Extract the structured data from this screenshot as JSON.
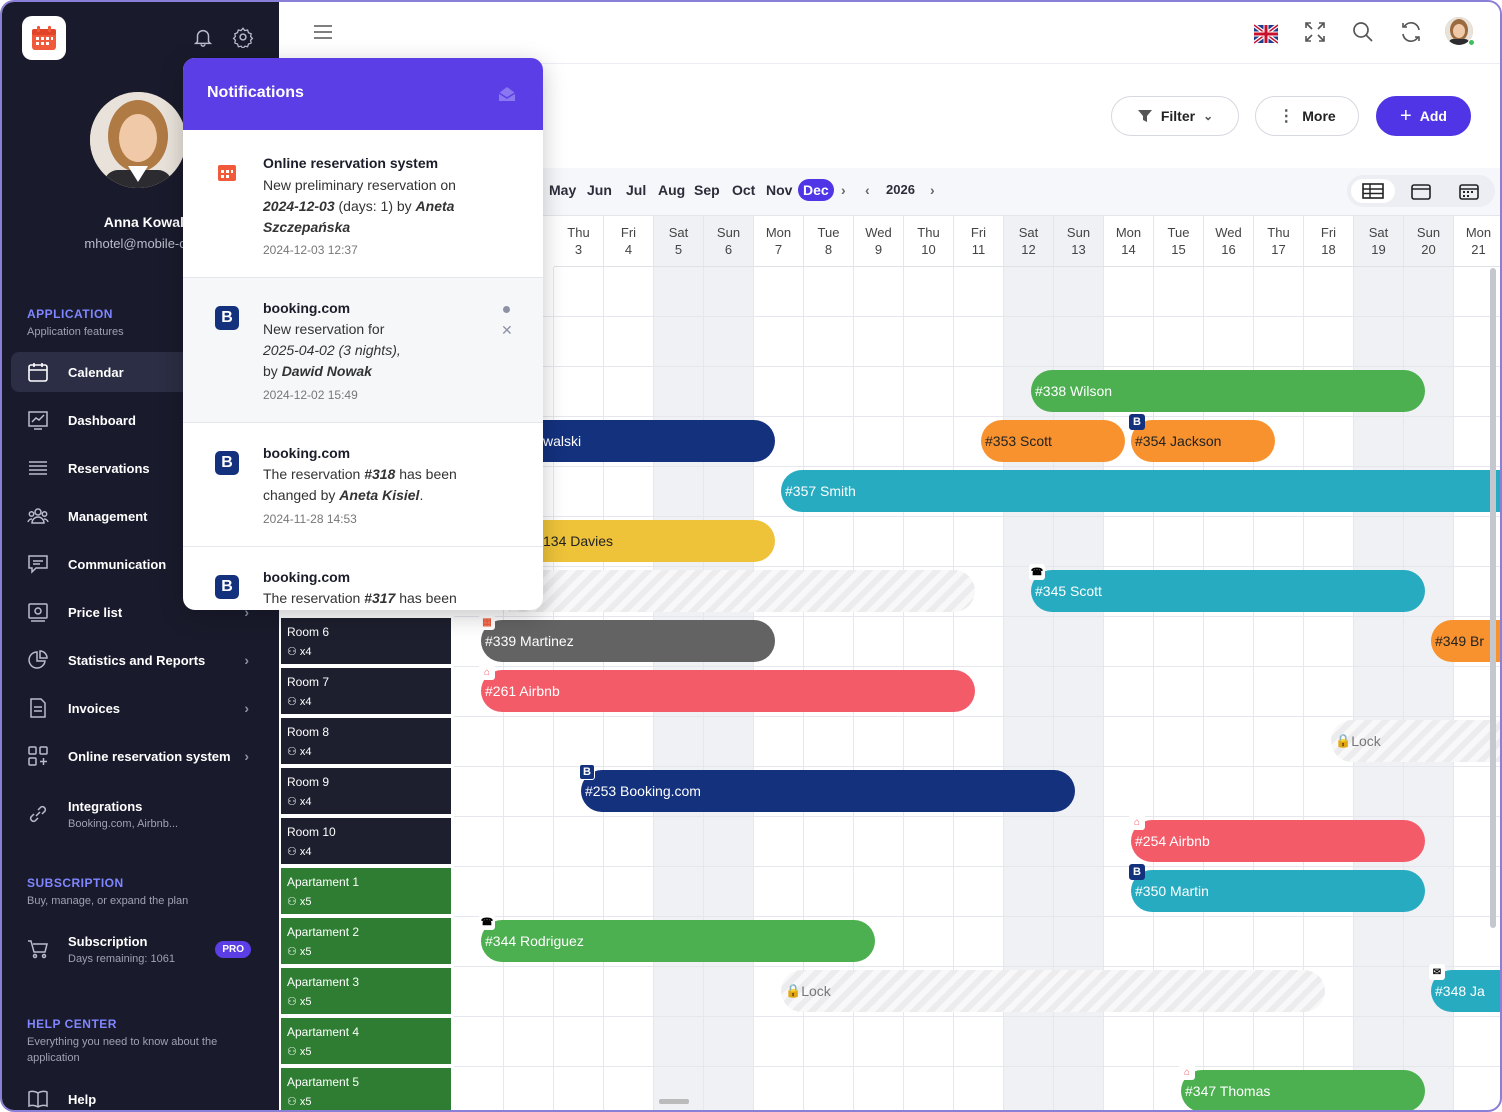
{
  "user": {
    "name": "Anna Kowalska",
    "email": "mhotel@mobile-calendar.com"
  },
  "sections": {
    "application": {
      "title": "APPLICATION",
      "sub": "Application features"
    },
    "subscription": {
      "title": "SUBSCRIPTION",
      "sub": "Buy, manage, or expand the plan"
    },
    "help": {
      "title": "HELP CENTER",
      "sub": "Everything you need to know about the application"
    }
  },
  "nav": [
    {
      "label": "Calendar",
      "icon": "calendar-icon"
    },
    {
      "label": "Dashboard",
      "icon": "chart-icon"
    },
    {
      "label": "Reservations",
      "icon": "list-icon"
    },
    {
      "label": "Management",
      "icon": "people-icon"
    },
    {
      "label": "Communication",
      "icon": "chat-icon"
    },
    {
      "label": "Price list",
      "icon": "price-icon"
    },
    {
      "label": "Statistics and Reports",
      "icon": "pie-icon"
    },
    {
      "label": "Invoices",
      "icon": "document-icon"
    },
    {
      "label": "Online reservation system",
      "icon": "grid-plus-icon"
    },
    {
      "label": "Integrations",
      "sub": "Booking.com, Airbnb...",
      "icon": "link-icon"
    }
  ],
  "subscription": {
    "label": "Subscription",
    "sub": "Days remaining: 1061",
    "badge": "PRO"
  },
  "help": {
    "label": "Help"
  },
  "toolbar": {
    "filter": "Filter",
    "more": "More",
    "add": "Add"
  },
  "months": [
    "May",
    "Jun",
    "Jul",
    "Aug",
    "Sep",
    "Oct",
    "Nov",
    "Dec"
  ],
  "selected_month": "Dec",
  "year": "2026",
  "days": [
    {
      "d": "Thu",
      "n": "3"
    },
    {
      "d": "Fri",
      "n": "4"
    },
    {
      "d": "Sat",
      "n": "5"
    },
    {
      "d": "Sun",
      "n": "6"
    },
    {
      "d": "Mon",
      "n": "7"
    },
    {
      "d": "Tue",
      "n": "8"
    },
    {
      "d": "Wed",
      "n": "9"
    },
    {
      "d": "Thu",
      "n": "10"
    },
    {
      "d": "Fri",
      "n": "11"
    },
    {
      "d": "Sat",
      "n": "12"
    },
    {
      "d": "Sun",
      "n": "13"
    },
    {
      "d": "Mon",
      "n": "14"
    },
    {
      "d": "Tue",
      "n": "15"
    },
    {
      "d": "Wed",
      "n": "16"
    },
    {
      "d": "Thu",
      "n": "17"
    },
    {
      "d": "Fri",
      "n": "18"
    },
    {
      "d": "Sat",
      "n": "19"
    },
    {
      "d": "Sun",
      "n": "20"
    },
    {
      "d": "Mon",
      "n": "21"
    }
  ],
  "rooms": [
    {
      "name": "Room 6",
      "cap": "x4"
    },
    {
      "name": "Room 7",
      "cap": "x4"
    },
    {
      "name": "Room 8",
      "cap": "x4"
    },
    {
      "name": "Room 9",
      "cap": "x4"
    },
    {
      "name": "Room 10",
      "cap": "x4"
    },
    {
      "name": "Apartament 1",
      "cap": "x5"
    },
    {
      "name": "Apartament 2",
      "cap": "x5"
    },
    {
      "name": "Apartament 3",
      "cap": "x5"
    },
    {
      "name": "Apartament 4",
      "cap": "x5"
    },
    {
      "name": "Apartament 5",
      "cap": "x5"
    }
  ],
  "bookings": {
    "b338": "#338 Wilson",
    "b_kowalski": "walski",
    "b353": "#353 Scott",
    "b354": "#354 Jackson",
    "b357": "#357 Smith",
    "b134": "134 Davies",
    "b345": "#345 Scott",
    "b339": "#339 Martinez",
    "b349": "#349 Br",
    "b261": "#261 Airbnb",
    "lock1": "Lock",
    "b253": "#253 Booking.com",
    "b254": "#254 Airbnb",
    "b350": "#350 Martin",
    "b344": "#344 Rodriguez",
    "lock2": "Lock",
    "b348": "#348 Ja",
    "b347": "#347 Thomas"
  },
  "colors": {
    "green": "#4caf50",
    "navy": "#14317e",
    "orange": "#f7922e",
    "teal": "#26abc0",
    "yellow": "#eec33a",
    "gray": "#636363",
    "red": "#f45b69",
    "accent": "#4f35e6"
  },
  "notifications": {
    "title": "Notifications",
    "items": [
      {
        "source": "Online reservation system",
        "l1": "New preliminary reservation on",
        "date_b": "2024-12-03",
        "l2": " (days: 1) by ",
        "name_b": "Aneta Szczepańska",
        "time": "2024-12-03 12:37"
      },
      {
        "source": "booking.com",
        "l1": "New reservation for",
        "it": "2025-04-02 (3 nights),",
        "l2": "by ",
        "name_b": "Dawid Nowak",
        "time": "2024-12-02 15:49"
      },
      {
        "source": "booking.com",
        "l1": "The reservation ",
        "res_b": "#318",
        "l1b": " has been",
        "l2": "changed by ",
        "name_b": "Aneta Kisiel",
        "time": "2024-11-28 14:53"
      },
      {
        "source": "booking.com",
        "l1": "The reservation ",
        "res_b": "#317",
        "l1b": " has been"
      }
    ]
  }
}
